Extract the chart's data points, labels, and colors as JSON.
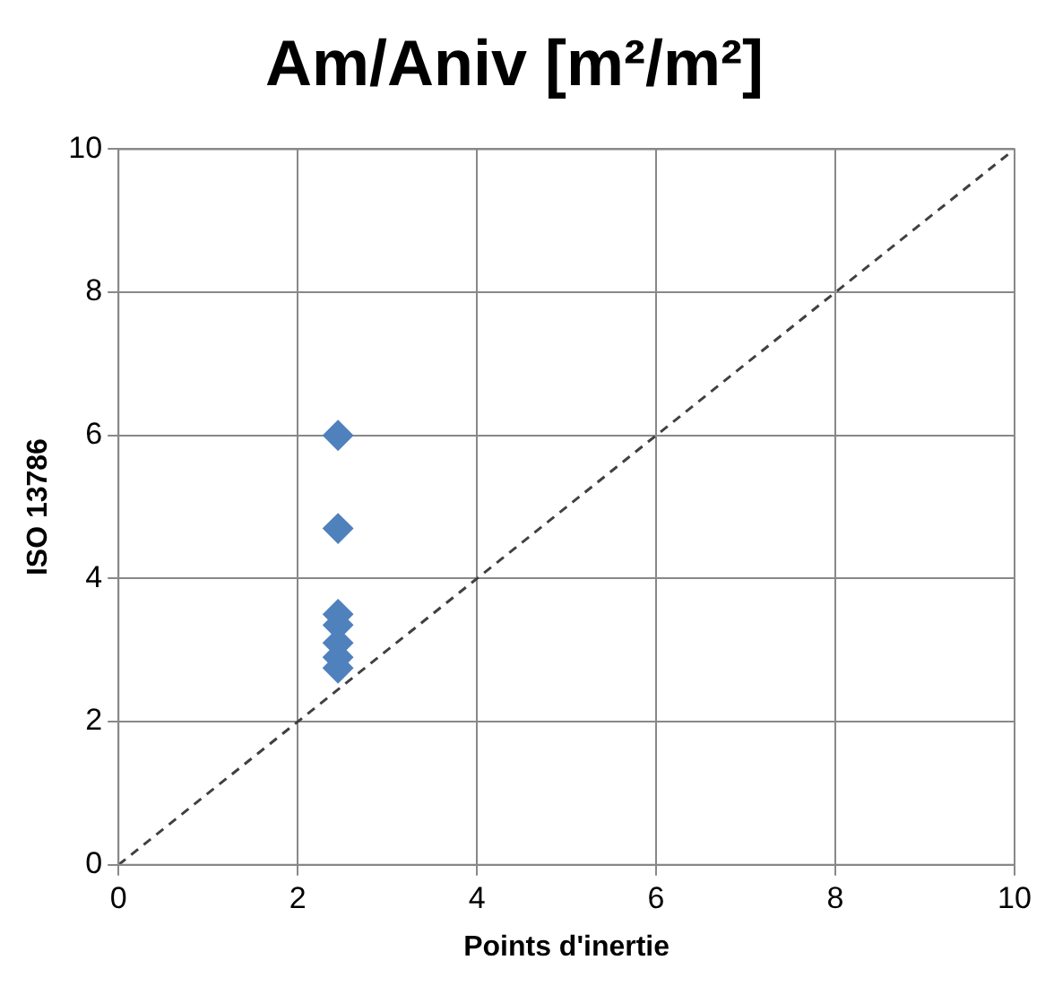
{
  "chart_data": {
    "type": "scatter",
    "title": "Am/Aniv [m²/m²]",
    "xlabel": "Points d'inertie",
    "ylabel": "ISO 13786",
    "xlim": [
      0,
      10
    ],
    "xticks": [
      0,
      2,
      4,
      6,
      8,
      10
    ],
    "ylim": [
      0,
      10
    ],
    "yticks": [
      0,
      2,
      4,
      6,
      8,
      10
    ],
    "grid": true,
    "marker": "diamond",
    "series": [
      {
        "color": "#4f81bd",
        "x": [
          2.45,
          2.45,
          2.45,
          2.45,
          2.45,
          2.45,
          2.45
        ],
        "values": [
          6.0,
          4.7,
          3.5,
          3.35,
          3.1,
          2.9,
          2.75
        ]
      },
      {
        "type": "line",
        "color": "#404040",
        "line_style": "dashed",
        "marker": "none",
        "x": [
          0,
          10
        ],
        "values": [
          0,
          10
        ]
      }
    ]
  }
}
